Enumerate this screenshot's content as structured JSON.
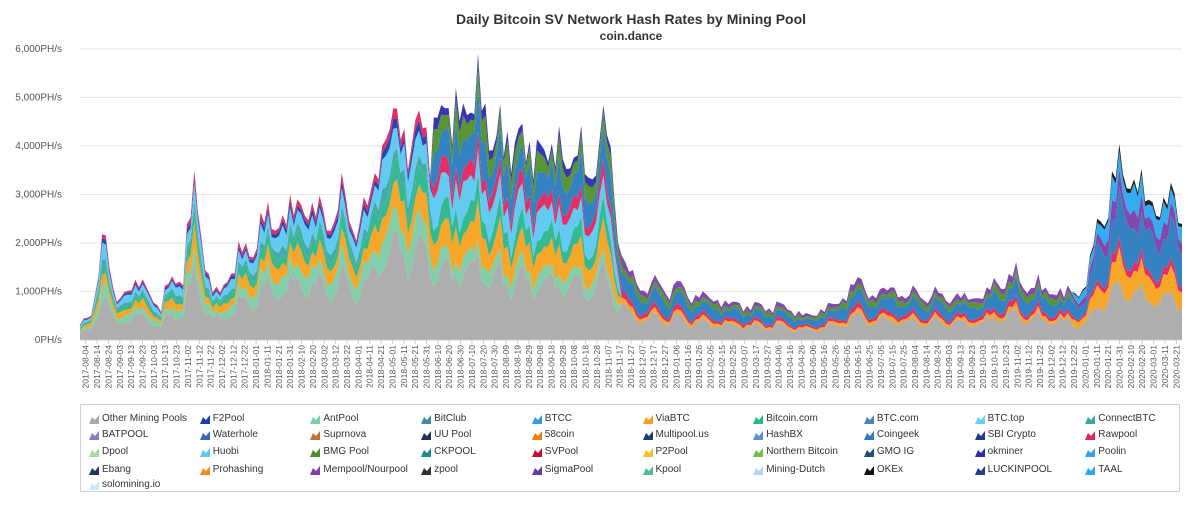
{
  "chart_data": {
    "type": "area",
    "stacked": true,
    "title": "Daily Bitcoin SV Network Hash Rates by Mining Pool",
    "subtitle": "coin.dance",
    "y_ticks": [
      "0PH/s",
      "1,000PH/s",
      "2,000PH/s",
      "3,000PH/s",
      "4,000PH/s",
      "5,000PH/s",
      "6,000PH/s"
    ],
    "ylim": [
      0,
      6000
    ],
    "unit": "PH/s",
    "x_ticks": [
      "2017-08-04",
      "2017-08-14",
      "2017-08-24",
      "2017-09-03",
      "2017-09-13",
      "2017-09-23",
      "2017-10-03",
      "2017-10-13",
      "2017-10-23",
      "2017-11-02",
      "2017-11-12",
      "2017-11-22",
      "2017-12-02",
      "2017-12-12",
      "2017-12-22",
      "2018-01-01",
      "2018-01-11",
      "2018-01-21",
      "2018-01-31",
      "2018-02-10",
      "2018-02-20",
      "2018-03-02",
      "2018-03-12",
      "2018-03-22",
      "2018-04-01",
      "2018-04-11",
      "2018-04-21",
      "2018-05-01",
      "2018-05-11",
      "2018-05-21",
      "2018-05-31",
      "2018-06-10",
      "2018-06-20",
      "2018-06-30",
      "2018-07-10",
      "2018-07-20",
      "2018-07-30",
      "2018-08-09",
      "2018-08-19",
      "2018-08-29",
      "2018-09-08",
      "2018-09-18",
      "2018-09-28",
      "2018-10-08",
      "2018-10-18",
      "2018-10-28",
      "2018-11-07",
      "2018-11-17",
      "2018-11-27",
      "2018-12-07",
      "2018-12-17",
      "2018-12-27",
      "2019-01-06",
      "2019-01-16",
      "2019-01-26",
      "2019-02-05",
      "2019-02-15",
      "2019-02-25",
      "2019-03-07",
      "2019-03-17",
      "2019-03-27",
      "2019-04-06",
      "2019-04-16",
      "2019-04-26",
      "2019-05-06",
      "2019-05-16",
      "2019-05-26",
      "2019-06-05",
      "2019-06-15",
      "2019-06-25",
      "2019-07-05",
      "2019-07-15",
      "2019-07-25",
      "2019-08-04",
      "2019-08-14",
      "2019-08-24",
      "2019-09-03",
      "2019-09-13",
      "2019-09-23",
      "2019-10-03",
      "2019-10-13",
      "2019-10-23",
      "2019-11-02",
      "2019-11-12",
      "2019-11-22",
      "2019-12-02",
      "2019-12-12",
      "2019-12-22",
      "2020-01-01",
      "2020-01-11",
      "2020-01-21",
      "2020-01-31",
      "2020-02-10",
      "2020-02-20",
      "2020-03-01",
      "2020-03-11",
      "2020-03-21"
    ],
    "total_approx": [
      {
        "x": "2017-08-04",
        "y": 300
      },
      {
        "x": "2017-08-14",
        "y": 500
      },
      {
        "x": "2017-08-24",
        "y": 2300
      },
      {
        "x": "2017-09-03",
        "y": 800
      },
      {
        "x": "2017-09-13",
        "y": 1050
      },
      {
        "x": "2017-09-23",
        "y": 1100
      },
      {
        "x": "2017-10-03",
        "y": 1150
      },
      {
        "x": "2017-10-13",
        "y": 500
      },
      {
        "x": "2017-10-23",
        "y": 1500
      },
      {
        "x": "2017-11-02",
        "y": 1100
      },
      {
        "x": "2017-11-12",
        "y": 3600
      },
      {
        "x": "2017-11-22",
        "y": 1300
      },
      {
        "x": "2017-12-02",
        "y": 900
      },
      {
        "x": "2017-12-12",
        "y": 1400
      },
      {
        "x": "2017-12-22",
        "y": 1700
      },
      {
        "x": "2018-01-01",
        "y": 2000
      },
      {
        "x": "2018-01-11",
        "y": 2300
      },
      {
        "x": "2018-01-21",
        "y": 2600
      },
      {
        "x": "2018-01-31",
        "y": 2400
      },
      {
        "x": "2018-02-10",
        "y": 2900
      },
      {
        "x": "2018-02-20",
        "y": 2700
      },
      {
        "x": "2018-03-02",
        "y": 2500
      },
      {
        "x": "2018-03-12",
        "y": 2600
      },
      {
        "x": "2018-03-22",
        "y": 2800
      },
      {
        "x": "2018-04-01",
        "y": 2400
      },
      {
        "x": "2018-04-11",
        "y": 2600
      },
      {
        "x": "2018-04-21",
        "y": 3800
      },
      {
        "x": "2018-05-01",
        "y": 4500
      },
      {
        "x": "2018-05-11",
        "y": 4200
      },
      {
        "x": "2018-05-21",
        "y": 4400
      },
      {
        "x": "2018-05-31",
        "y": 3900
      },
      {
        "x": "2018-06-10",
        "y": 4900
      },
      {
        "x": "2018-06-20",
        "y": 4400
      },
      {
        "x": "2018-06-30",
        "y": 4900
      },
      {
        "x": "2018-07-10",
        "y": 4700
      },
      {
        "x": "2018-07-20",
        "y": 5100
      },
      {
        "x": "2018-07-30",
        "y": 4100
      },
      {
        "x": "2018-08-09",
        "y": 4000
      },
      {
        "x": "2018-08-19",
        "y": 4300
      },
      {
        "x": "2018-08-29",
        "y": 3700
      },
      {
        "x": "2018-09-08",
        "y": 4100
      },
      {
        "x": "2018-09-18",
        "y": 3700
      },
      {
        "x": "2018-09-28",
        "y": 4000
      },
      {
        "x": "2018-10-08",
        "y": 3600
      },
      {
        "x": "2018-10-18",
        "y": 3800
      },
      {
        "x": "2018-10-28",
        "y": 3400
      },
      {
        "x": "2018-11-07",
        "y": 4800
      },
      {
        "x": "2018-11-17",
        "y": 1700
      },
      {
        "x": "2018-11-27",
        "y": 1350
      },
      {
        "x": "2018-12-07",
        "y": 1050
      },
      {
        "x": "2018-12-17",
        "y": 1150
      },
      {
        "x": "2018-12-27",
        "y": 1050
      },
      {
        "x": "2019-01-06",
        "y": 1100
      },
      {
        "x": "2019-01-16",
        "y": 950
      },
      {
        "x": "2019-01-26",
        "y": 900
      },
      {
        "x": "2019-02-05",
        "y": 850
      },
      {
        "x": "2019-02-15",
        "y": 800
      },
      {
        "x": "2019-02-25",
        "y": 700
      },
      {
        "x": "2019-03-07",
        "y": 750
      },
      {
        "x": "2019-03-17",
        "y": 650
      },
      {
        "x": "2019-03-27",
        "y": 700
      },
      {
        "x": "2019-04-06",
        "y": 700
      },
      {
        "x": "2019-04-16",
        "y": 600
      },
      {
        "x": "2019-04-26",
        "y": 550
      },
      {
        "x": "2019-05-06",
        "y": 450
      },
      {
        "x": "2019-05-16",
        "y": 800
      },
      {
        "x": "2019-05-26",
        "y": 600
      },
      {
        "x": "2019-06-05",
        "y": 1200
      },
      {
        "x": "2019-06-15",
        "y": 1100
      },
      {
        "x": "2019-06-25",
        "y": 950
      },
      {
        "x": "2019-07-05",
        "y": 1000
      },
      {
        "x": "2019-07-15",
        "y": 1050
      },
      {
        "x": "2019-07-25",
        "y": 900
      },
      {
        "x": "2019-08-04",
        "y": 950
      },
      {
        "x": "2019-08-14",
        "y": 900
      },
      {
        "x": "2019-08-24",
        "y": 900
      },
      {
        "x": "2019-09-03",
        "y": 900
      },
      {
        "x": "2019-09-13",
        "y": 850
      },
      {
        "x": "2019-09-23",
        "y": 900
      },
      {
        "x": "2019-10-03",
        "y": 950
      },
      {
        "x": "2019-10-13",
        "y": 1200
      },
      {
        "x": "2019-10-23",
        "y": 1300
      },
      {
        "x": "2019-11-02",
        "y": 1200
      },
      {
        "x": "2019-11-12",
        "y": 1100
      },
      {
        "x": "2019-11-22",
        "y": 1050
      },
      {
        "x": "2019-12-02",
        "y": 1000
      },
      {
        "x": "2019-12-12",
        "y": 950
      },
      {
        "x": "2019-12-22",
        "y": 1000
      },
      {
        "x": "2020-01-01",
        "y": 1400
      },
      {
        "x": "2020-01-11",
        "y": 2800
      },
      {
        "x": "2020-01-21",
        "y": 3000
      },
      {
        "x": "2020-01-31",
        "y": 3700
      },
      {
        "x": "2020-02-10",
        "y": 3200
      },
      {
        "x": "2020-02-20",
        "y": 2800
      },
      {
        "x": "2020-03-01",
        "y": 2900
      },
      {
        "x": "2020-03-11",
        "y": 2700
      },
      {
        "x": "2020-03-21",
        "y": 2800
      }
    ],
    "legend": [
      {
        "name": "Other Mining Pools",
        "color": "#aaaaaa"
      },
      {
        "name": "F2Pool",
        "color": "#1f3bb3"
      },
      {
        "name": "AntPool",
        "color": "#7ccca6"
      },
      {
        "name": "BitClub",
        "color": "#3f8fa0"
      },
      {
        "name": "BTCC",
        "color": "#3a9ad9"
      },
      {
        "name": "ViaBTC",
        "color": "#f5a11c"
      },
      {
        "name": "Bitcoin.com",
        "color": "#2ab58a"
      },
      {
        "name": "BTC.com",
        "color": "#4f81bd"
      },
      {
        "name": "BTC.top",
        "color": "#66d3f2"
      },
      {
        "name": "ConnectBTC",
        "color": "#3ba8a0"
      },
      {
        "name": "BATPOOL",
        "color": "#8e7cc3"
      },
      {
        "name": "Waterhole",
        "color": "#3c66b5"
      },
      {
        "name": "Suprnova",
        "color": "#c0703a"
      },
      {
        "name": "UU Pool",
        "color": "#223355"
      },
      {
        "name": "58coin",
        "color": "#f07f0e"
      },
      {
        "name": "Multipool.us",
        "color": "#1c3b6e"
      },
      {
        "name": "HashBX",
        "color": "#5b8fd6"
      },
      {
        "name": "Coingeek",
        "color": "#2a7bbf"
      },
      {
        "name": "SBI Crypto",
        "color": "#1e3a8a"
      },
      {
        "name": "Rawpool",
        "color": "#e0245e"
      },
      {
        "name": "Dpool",
        "color": "#a6dba0"
      },
      {
        "name": "Huobi",
        "color": "#5bc8f0"
      },
      {
        "name": "BMG Pool",
        "color": "#4e8f2a"
      },
      {
        "name": "CKPOOL",
        "color": "#1b8a8a"
      },
      {
        "name": "SVPool",
        "color": "#c8102e"
      },
      {
        "name": "P2Pool",
        "color": "#f2c12e"
      },
      {
        "name": "Northern Bitcoin",
        "color": "#6fbf4a"
      },
      {
        "name": "GMO IG",
        "color": "#1f4e79"
      },
      {
        "name": "okminer",
        "color": "#2b2bb0"
      },
      {
        "name": "Poolin",
        "color": "#3aa0e6"
      },
      {
        "name": "Ebang",
        "color": "#25365a"
      },
      {
        "name": "Prohashing",
        "color": "#f08a24"
      },
      {
        "name": "Mempool/Nourpool",
        "color": "#7b3fa8"
      },
      {
        "name": "zpool",
        "color": "#333333"
      },
      {
        "name": "SigmaPool",
        "color": "#5e3fa8"
      },
      {
        "name": "Kpool",
        "color": "#4fbf8f"
      },
      {
        "name": "Mining-Dutch",
        "color": "#b9d4f2"
      },
      {
        "name": "OKEx",
        "color": "#111111"
      },
      {
        "name": "LUCKINPOOL",
        "color": "#283d8f"
      },
      {
        "name": "TAAL",
        "color": "#2aa6f0"
      },
      {
        "name": "solomining.io",
        "color": "#cde8f6"
      }
    ]
  }
}
